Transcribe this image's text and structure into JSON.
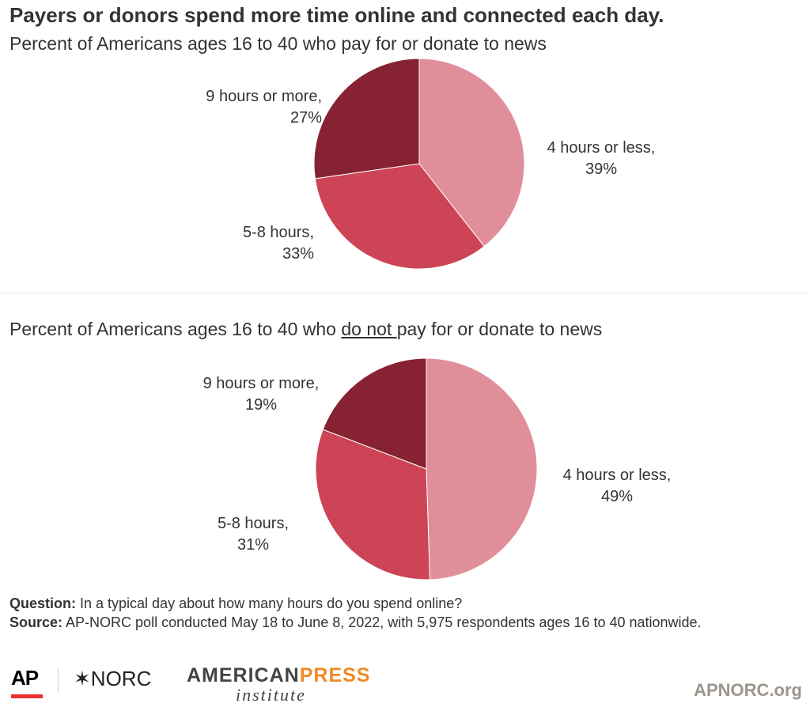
{
  "title": "Payers or donors spend more time online and connected each day.",
  "colors": {
    "4 hours or less": "#e08e99",
    "5-8 hours": "#cc4455",
    "9 hours or more": "#862232"
  },
  "chart_data": [
    {
      "type": "pie",
      "subtitle": "Percent of Americans ages 16 to 40 who pay for or donate to news",
      "slices": [
        {
          "label": "4 hours or less",
          "value": 39,
          "display": "39%"
        },
        {
          "label": "5-8 hours",
          "value": 33,
          "display": "33%"
        },
        {
          "label": "9 hours or more",
          "value": 27,
          "display": "27%"
        }
      ]
    },
    {
      "type": "pie",
      "subtitle_pre": "Percent of Americans ages 16 to 40 who ",
      "subtitle_u": "do not ",
      "subtitle_post": "pay for or donate to news",
      "slices": [
        {
          "label": "4 hours or less",
          "value": 49,
          "display": "49%"
        },
        {
          "label": "5-8 hours",
          "value": 31,
          "display": "31%"
        },
        {
          "label": "9 hours or more",
          "value": 19,
          "display": "19%"
        }
      ]
    }
  ],
  "footer": {
    "question_label": "Question:",
    "question": " In a typical day about how many hours do you spend online?",
    "source_label": "Source:",
    "source": " AP-NORC poll conducted May 18 to June 8, 2022, with 5,975 respondents ages 16 to 40 nationwide.",
    "logos": {
      "ap": "AP",
      "norc": "NORC",
      "api_1": "AMERICAN",
      "api_2": "PRESS",
      "api_3": "institute"
    },
    "site": "APNORC.org"
  }
}
